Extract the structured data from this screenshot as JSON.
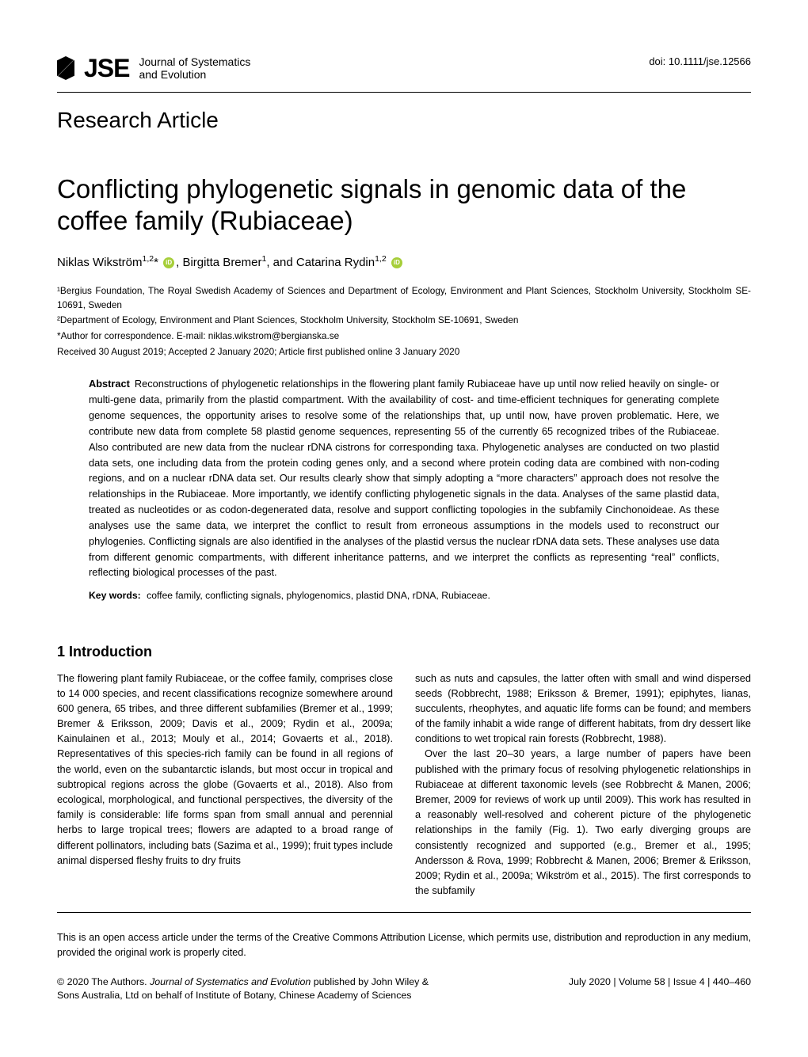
{
  "header": {
    "logo_text": "JSE",
    "journal_name_line1": "Journal of Systematics",
    "journal_name_line2": "and Evolution",
    "doi": "doi: 10.1111/jse.12566"
  },
  "article": {
    "type": "Research Article",
    "title": "Conflicting phylogenetic signals in genomic data of the coffee family (Rubiaceae)",
    "authors_html": "Niklas Wikström<span class='sup'>1,2</span>* <span class='orcid' data-name='orcid-icon' data-interactable='false'></span>, Birgitta Bremer<span class='sup'>1</span>, and Catarina Rydin<span class='sup'>1,2</span> <span class='orcid' data-name='orcid-icon' data-interactable='false'></span>",
    "affiliations": [
      "¹Bergius Foundation, The Royal Swedish Academy of Sciences and Department of Ecology, Environment and Plant Sciences, Stockholm University, Stockholm SE-10691, Sweden",
      "²Department of Ecology, Environment and Plant Sciences, Stockholm University, Stockholm SE-10691, Sweden"
    ],
    "correspondence": "*Author for correspondence. E-mail: niklas.wikstrom@bergianska.se",
    "received": "Received 30 August 2019; Accepted 2 January 2020; Article first published online 3 January 2020",
    "abstract_label": "Abstract",
    "abstract_text": "Reconstructions of phylogenetic relationships in the flowering plant family Rubiaceae have up until now relied heavily on single- or multi-gene data, primarily from the plastid compartment. With the availability of cost- and time-efficient techniques for generating complete genome sequences, the opportunity arises to resolve some of the relationships that, up until now, have proven problematic. Here, we contribute new data from complete 58 plastid genome sequences, representing 55 of the currently 65 recognized tribes of the Rubiaceae. Also contributed are new data from the nuclear rDNA cistrons for corresponding taxa. Phylogenetic analyses are conducted on two plastid data sets, one including data from the protein coding genes only, and a second where protein coding data are combined with non-coding regions, and on a nuclear rDNA data set. Our results clearly show that simply adopting a “more characters” approach does not resolve the relationships in the Rubiaceae. More importantly, we identify conflicting phylogenetic signals in the data. Analyses of the same plastid data, treated as nucleotides or as codon-degenerated data, resolve and support conflicting topologies in the subfamily Cinchonoideae. As these analyses use the same data, we interpret the conflict to result from erroneous assumptions in the models used to reconstruct our phylogenies. Conflicting signals are also identified in the analyses of the plastid versus the nuclear rDNA data sets. These analyses use data from different genomic compartments, with different inheritance patterns, and we interpret the conflicts as representing “real” conflicts, reflecting biological processes of the past.",
    "keywords_label": "Key words:",
    "keywords": "coffee family, conflicting signals, phylogenomics, plastid DNA, rDNA, Rubiaceae."
  },
  "sections": {
    "intro_heading": "1 Introduction",
    "intro_col1": "The flowering plant family Rubiaceae, or the coffee family, comprises close to 14 000 species, and recent classifications recognize somewhere around 600 genera, 65 tribes, and three different subfamilies (Bremer et al., 1999; Bremer & Eriksson, 2009; Davis et al., 2009; Rydin et al., 2009a; Kainulainen et al., 2013; Mouly et al., 2014; Govaerts et al., 2018). Representatives of this species-rich family can be found in all regions of the world, even on the subantarctic islands, but most occur in tropical and subtropical regions across the globe (Govaerts et al., 2018). Also from ecological, morphological, and functional perspectives, the diversity of the family is considerable: life forms span from small annual and perennial herbs to large tropical trees; flowers are adapted to a broad range of different pollinators, including bats (Sazima et al., 1999); fruit types include animal dispersed fleshy fruits to dry fruits",
    "intro_col2_p1": "such as nuts and capsules, the latter often with small and wind dispersed seeds (Robbrecht, 1988; Eriksson & Bremer, 1991); epiphytes, lianas, succulents, rheophytes, and aquatic life forms can be found; and members of the family inhabit a wide range of different habitats, from dry dessert like conditions to wet tropical rain forests (Robbrecht, 1988).",
    "intro_col2_p2": "Over the last 20–30 years, a large number of papers have been published with the primary focus of resolving phylogenetic relationships in Rubiaceae at different taxonomic levels (see Robbrecht & Manen, 2006; Bremer, 2009 for reviews of work up until 2009). This work has resulted in a reasonably well-resolved and coherent picture of the phylogenetic relationships in the family (Fig. 1). Two early diverging groups are consistently recognized and supported (e.g., Bremer et al., 1995; Andersson & Rova, 1999; Robbrecht & Manen, 2006; Bremer & Eriksson, 2009; Rydin et al., 2009a; Wikström et al., 2015). The first corresponds to the subfamily"
  },
  "license": "This is an open access article under the terms of the Creative Commons Attribution License, which permits use, distribution and reproduction in any medium, provided the original work is properly cited.",
  "footer": {
    "left_html": "© 2020 The Authors. <em>Journal of Systematics and Evolution</em> published by John Wiley & Sons Australia, Ltd on behalf of Institute of Botany, Chinese Academy of Sciences",
    "right": "July 2020  |  Volume 58  |  Issue 4  |  440–460"
  },
  "colors": {
    "text": "#000000",
    "background": "#ffffff",
    "orcid": "#a6ce39",
    "rule": "#000000"
  },
  "typography": {
    "body_fontsize_pt": 10,
    "title_fontsize_pt": 25,
    "article_type_fontsize_pt": 21,
    "section_head_fontsize_pt": 14,
    "font_family": "Myriad Pro / sans-serif"
  }
}
